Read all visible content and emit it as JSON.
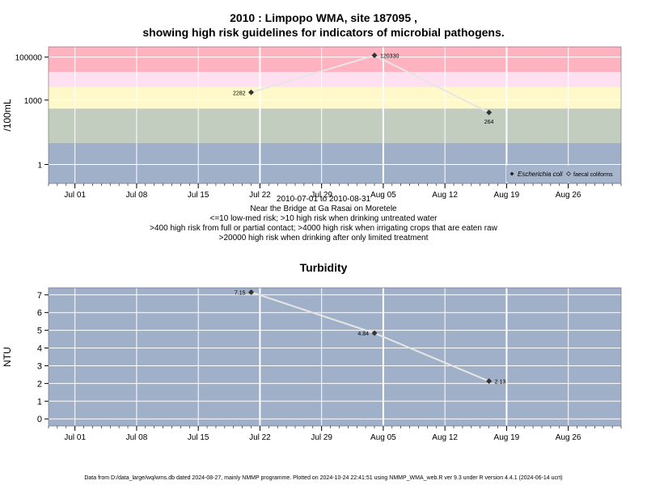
{
  "chart_data": [
    {
      "type": "line",
      "title": "2010 : Limpopo WMA, site 187095 ,",
      "subtitle": "showing high risk guidelines for indicators of microbial pathogens.",
      "ylabel": "/100mL",
      "y_scale": "log",
      "yticks": [
        {
          "value": 1,
          "label": "1"
        },
        {
          "value": 1000,
          "label": "1000"
        },
        {
          "value": 100000,
          "label": "100000"
        }
      ],
      "xticks": [
        "Jul 01",
        "Jul 08",
        "Jul 15",
        "Jul 22",
        "Jul 29",
        "Aug 05",
        "Aug 12",
        "Aug 19",
        "Aug 26"
      ],
      "xtick_dates": [
        "2010-07-01",
        "2010-07-08",
        "2010-07-15",
        "2010-07-22",
        "2010-07-29",
        "2010-08-05",
        "2010-08-12",
        "2010-08-19",
        "2010-08-26"
      ],
      "xlim": [
        "2010-06-28",
        "2010-09-01"
      ],
      "bands": [
        {
          "from": 20000,
          "to": 300000,
          "color": "#ffb3c1"
        },
        {
          "from": 4000,
          "to": 20000,
          "color": "#ffe0f0"
        },
        {
          "from": 400,
          "to": 4000,
          "color": "#fff8c8"
        },
        {
          "from": 10,
          "to": 400,
          "color": "#c3cdbf"
        },
        {
          "from": 0.1,
          "to": 10,
          "color": "#a0b0c9"
        }
      ],
      "series": [
        {
          "name": "Escherichia coli",
          "color": "#333333",
          "points": [
            {
              "x": "2010-07-21",
              "y": 2282,
              "label": "2282"
            },
            {
              "x": "2010-08-04",
              "y": 120330,
              "label": "120330"
            },
            {
              "x": "2010-08-17",
              "y": 264,
              "label": "264"
            }
          ]
        }
      ],
      "legend": {
        "placement": "bottom-right",
        "entries": [
          "Escherichia coli",
          "faecal coliforms"
        ]
      },
      "caption_lines": [
        "2010-07-01 to 2010-08-31",
        "Near the Bridge at Ga Rasai on Moretele",
        "<=10 low-med risk; >10 high risk when drinking untreated water",
        ">400 high risk from full or partial contact; >4000 high risk when irrigating crops that are eaten raw",
        ">20000 high risk when drinking after only limited treatment"
      ]
    },
    {
      "type": "line",
      "title": "Turbidity",
      "ylabel": "NTU",
      "ylim": [
        -0.4,
        7.4
      ],
      "yticks": [
        0,
        1,
        2,
        3,
        4,
        5,
        6,
        7
      ],
      "xticks": [
        "Jul 01",
        "Jul 08",
        "Jul 15",
        "Jul 22",
        "Jul 29",
        "Aug 05",
        "Aug 12",
        "Aug 19",
        "Aug 26"
      ],
      "xtick_dates": [
        "2010-07-01",
        "2010-07-08",
        "2010-07-15",
        "2010-07-22",
        "2010-07-29",
        "2010-08-05",
        "2010-08-12",
        "2010-08-19",
        "2010-08-26"
      ],
      "xlim": [
        "2010-06-28",
        "2010-09-01"
      ],
      "background": "#a0b0c9",
      "series": [
        {
          "color": "#333333",
          "points": [
            {
              "x": "2010-07-21",
              "y": 7.15,
              "label": "7.15"
            },
            {
              "x": "2010-08-04",
              "y": 4.84,
              "label": "4.84"
            },
            {
              "x": "2010-08-17",
              "y": 2.13,
              "label": "2.13"
            }
          ]
        }
      ]
    }
  ],
  "footer": "Data from D:/data_large/wq/wms.db dated 2024-08-27, mainly NMMP programme. Plotted on 2024-10-24 22:41:51 using NMMP_WMA_web.R ver 9.3 under R version 4.4.1 (2024-06-14 ucrt)"
}
